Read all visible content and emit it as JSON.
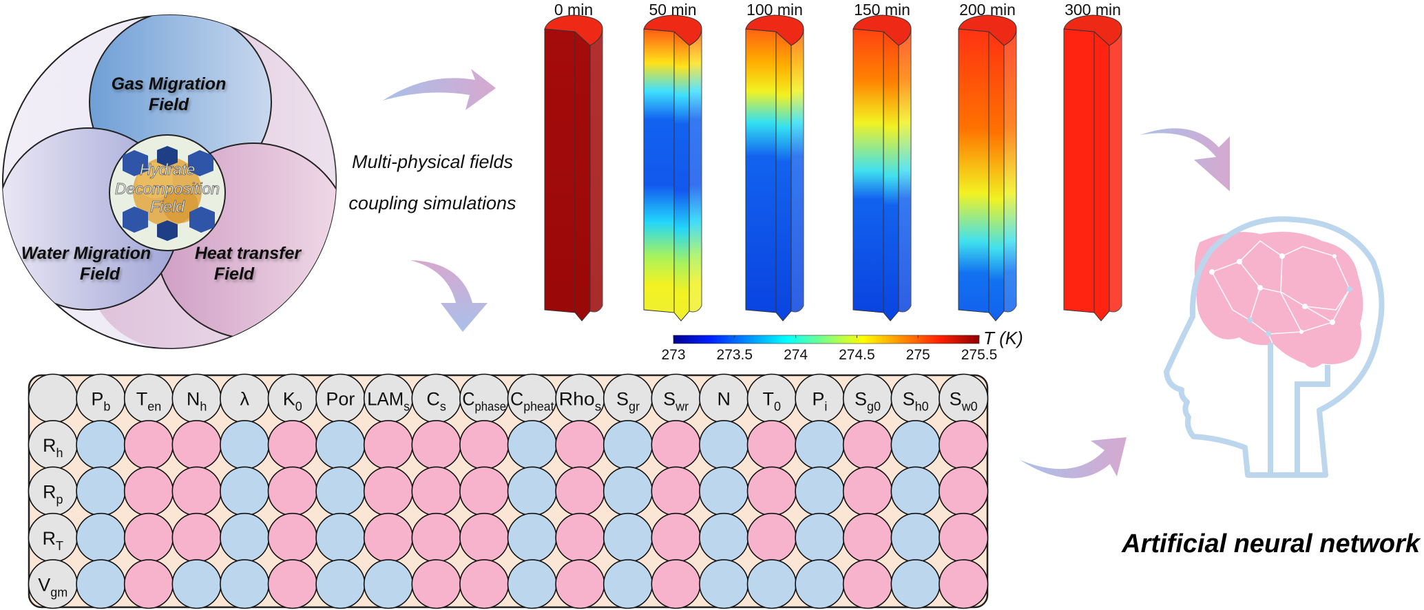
{
  "fields": {
    "gas": [
      "Gas Migration",
      "Field"
    ],
    "water": [
      "Water Migration",
      "Field"
    ],
    "heat": [
      "Heat transfer",
      "Field"
    ],
    "hydrate": [
      "Hydrate",
      "Decomposition",
      "Field"
    ]
  },
  "simulation_text": [
    "Multi-physical fields",
    "coupling simulations"
  ],
  "time_steps": [
    {
      "label": "0 min",
      "colors": [
        [
          "0",
          "#a50b0b"
        ],
        [
          "1",
          "#9a0808"
        ]
      ]
    },
    {
      "label": "50 min",
      "colors": [
        [
          "0",
          "#ff5a12"
        ],
        [
          "0.12",
          "#ffe21a"
        ],
        [
          "0.22",
          "#3fe0ff"
        ],
        [
          "0.32",
          "#1262ef"
        ],
        [
          "0.55",
          "#1258ee"
        ],
        [
          "0.68",
          "#22d6fb"
        ],
        [
          "0.8",
          "#a6f25e"
        ],
        [
          "0.9",
          "#f2f222"
        ],
        [
          "1",
          "#f0f030"
        ]
      ]
    },
    {
      "label": "100 min",
      "colors": [
        [
          "0",
          "#ff6212"
        ],
        [
          "0.12",
          "#ffb000"
        ],
        [
          "0.22",
          "#f2f222"
        ],
        [
          "0.33",
          "#33e0f2"
        ],
        [
          "0.45",
          "#1262ef"
        ],
        [
          "1",
          "#0a44e0"
        ]
      ]
    },
    {
      "label": "150 min",
      "colors": [
        [
          "0",
          "#ff4212"
        ],
        [
          "0.18",
          "#ff8200"
        ],
        [
          "0.33",
          "#f2f222"
        ],
        [
          "0.5",
          "#40e0f0"
        ],
        [
          "0.6",
          "#1262ef"
        ],
        [
          "1",
          "#0a44e0"
        ]
      ]
    },
    {
      "label": "200 min",
      "colors": [
        [
          "0",
          "#ff3212"
        ],
        [
          "0.35",
          "#ff7200"
        ],
        [
          "0.58",
          "#f2f222"
        ],
        [
          "0.75",
          "#40e0f0"
        ],
        [
          "0.86",
          "#1272f0"
        ],
        [
          "1",
          "#1262ef"
        ]
      ]
    },
    {
      "label": "300 min",
      "colors": [
        [
          "0",
          "#ff2412"
        ],
        [
          "1",
          "#ff2412"
        ]
      ]
    }
  ],
  "colorbar": {
    "ticks": [
      "273",
      "273.5",
      "274",
      "274.5",
      "275",
      "275.5"
    ],
    "unit": "T (K)",
    "range": [
      273,
      275.5
    ]
  },
  "matrix": {
    "columns": [
      {
        "main": "P",
        "sub": "b"
      },
      {
        "main": "T",
        "sub": "en"
      },
      {
        "main": "N",
        "sub": "h"
      },
      {
        "main": "λ",
        "sub": ""
      },
      {
        "main": "K",
        "sub": "0"
      },
      {
        "main": "Por",
        "sub": ""
      },
      {
        "main": "LAM",
        "sub": "s"
      },
      {
        "main": "C",
        "sub": "s"
      },
      {
        "main": "C",
        "sub": "phase"
      },
      {
        "main": "C",
        "sub": "pheat"
      },
      {
        "main": "Rho",
        "sub": "s"
      },
      {
        "main": "S",
        "sub": "gr"
      },
      {
        "main": "S",
        "sub": "wr"
      },
      {
        "main": "N",
        "sub": ""
      },
      {
        "main": "T",
        "sub": "0"
      },
      {
        "main": "P",
        "sub": "i"
      },
      {
        "main": "S",
        "sub": "g0"
      },
      {
        "main": "S",
        "sub": "h0"
      },
      {
        "main": "S",
        "sub": "w0"
      }
    ],
    "rows": [
      {
        "main": "R",
        "sub": "h",
        "cells": "BPPBPBPPPBPBPBPBPBP"
      },
      {
        "main": "R",
        "sub": "p",
        "cells": "BPPBPBPPPBPBPBPBPBP"
      },
      {
        "main": "R",
        "sub": "T",
        "cells": "BPPBPBPPPBPBPBPBPBP"
      },
      {
        "main": "V",
        "sub": "gm",
        "cells": "BPBBPBBPPBPBPBBBPBP"
      }
    ],
    "colors": {
      "B": "#bcd6ee",
      "P": "#f6b3cb",
      "header": "#e4e4e4",
      "background": "#fbe5d4"
    }
  },
  "ann_label": "Artificial neural network"
}
